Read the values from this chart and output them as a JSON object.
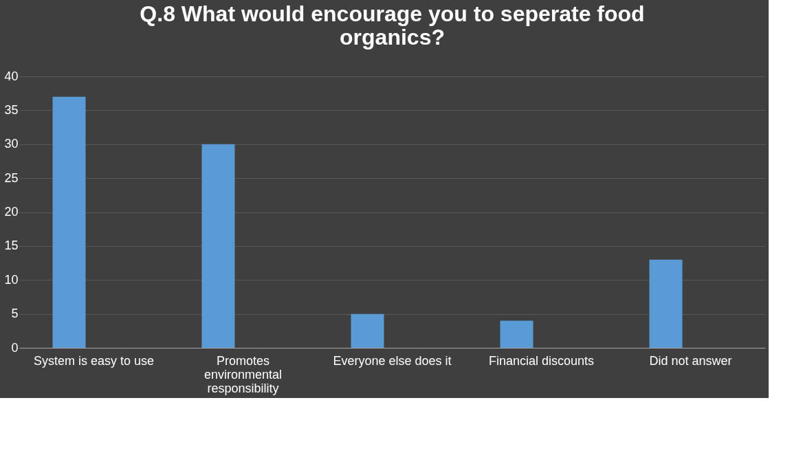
{
  "chart_data": {
    "type": "bar",
    "title": "Q.8 What would encourage you to seperate food organics?",
    "categories": [
      "System is easy to use",
      "Promotes environmental responsibility",
      "Everyone else does it",
      "Financial discounts",
      "Did not answer"
    ],
    "values": [
      37,
      30,
      5,
      4,
      13
    ],
    "color": "#5b9bd5",
    "ylim": [
      0,
      40
    ],
    "yticks": [
      0,
      5,
      10,
      15,
      20,
      25,
      30,
      35,
      40
    ],
    "grid": "y"
  }
}
